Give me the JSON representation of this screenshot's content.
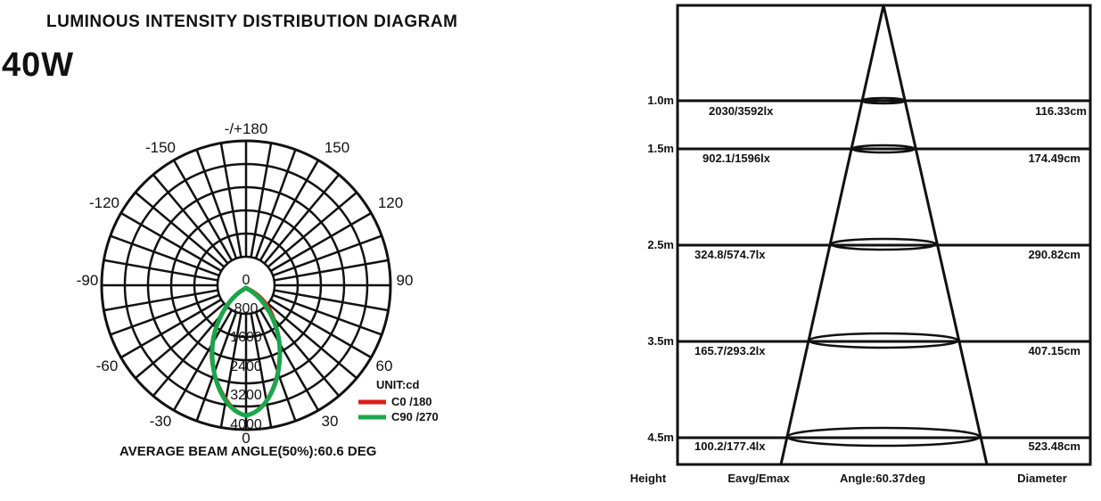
{
  "header": {
    "title": "LUMINOUS INTENSITY DISTRIBUTION DIAGRAM",
    "power": "40W"
  },
  "polar": {
    "angle_labels": [
      "-/+180",
      "-150",
      "150",
      "-120",
      "120",
      "-90",
      "90",
      "-60",
      "60",
      "-30",
      "30",
      "0"
    ],
    "intensity_labels": [
      "0",
      "800",
      "1600",
      "2400",
      "3200",
      "4000"
    ],
    "unit": "UNIT:cd",
    "legend": [
      {
        "label": "C0  /180",
        "color": "#e21b1b"
      },
      {
        "label": "C90 /270",
        "color": "#1aa64a"
      }
    ],
    "beam_angle_text": "AVERAGE BEAM ANGLE(50%):60.6 DEG"
  },
  "cone": {
    "rows": [
      {
        "height": "1.0m",
        "illuminance": "2030/3592lx",
        "diameter": "116.33cm"
      },
      {
        "height": "1.5m",
        "illuminance": "902.1/1596lx",
        "diameter": "174.49cm"
      },
      {
        "height": "2.5m",
        "illuminance": "324.8/574.7lx",
        "diameter": "290.82cm"
      },
      {
        "height": "3.5m",
        "illuminance": "165.7/293.2lx",
        "diameter": "407.15cm"
      },
      {
        "height": "4.5m",
        "illuminance": "100.2/177.4lx",
        "diameter": "523.48cm"
      }
    ],
    "footer": {
      "height": "Height",
      "eavg": "Eavg/Emax",
      "angle": "Angle:60.37deg",
      "diameter": "Diameter"
    }
  }
}
